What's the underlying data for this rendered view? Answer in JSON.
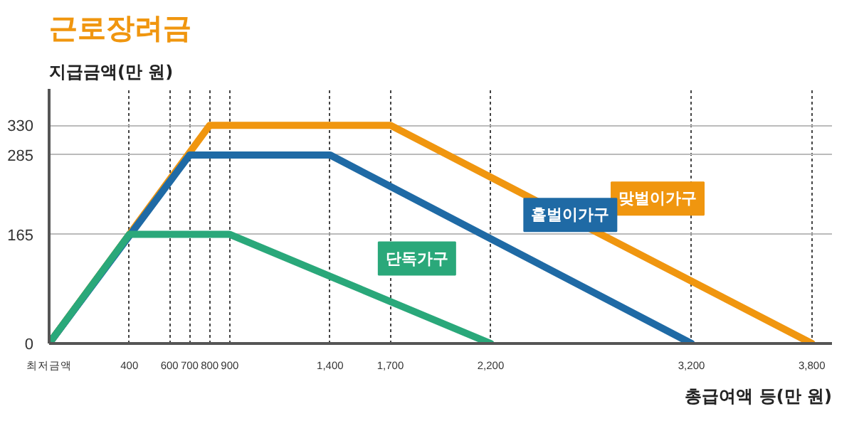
{
  "chart_data": {
    "type": "line",
    "title": "근로장려금",
    "ylabel": "지급금액(만 원)",
    "xlabel": "총급여액 등(만 원)",
    "xlim": [
      0,
      3900
    ],
    "ylim": [
      0,
      385
    ],
    "xticks": [
      {
        "value": 0,
        "label": "최저금액"
      },
      {
        "value": 400,
        "label": "400"
      },
      {
        "value": 600,
        "label": "600"
      },
      {
        "value": 700,
        "label": "700"
      },
      {
        "value": 800,
        "label": "800"
      },
      {
        "value": 900,
        "label": "900"
      },
      {
        "value": 1400,
        "label": "1,400"
      },
      {
        "value": 1700,
        "label": "1,700"
      },
      {
        "value": 2200,
        "label": "2,200"
      },
      {
        "value": 3200,
        "label": "3,200"
      },
      {
        "value": 3800,
        "label": "3,800"
      }
    ],
    "yticks": [
      0,
      165,
      285,
      330
    ],
    "grid": true,
    "series": [
      {
        "name": "맞벌이가구",
        "color": "#f0960f",
        "x": [
          0,
          800,
          1700,
          3800
        ],
        "values": [
          0,
          330,
          330,
          0
        ]
      },
      {
        "name": "홑벌이가구",
        "color": "#1f6aa5",
        "x": [
          0,
          700,
          1400,
          3200
        ],
        "values": [
          0,
          285,
          285,
          0
        ]
      },
      {
        "name": "단독가구",
        "color": "#2aa87a",
        "x": [
          0,
          400,
          900,
          2200
        ],
        "values": [
          0,
          165,
          165,
          0
        ]
      }
    ]
  }
}
